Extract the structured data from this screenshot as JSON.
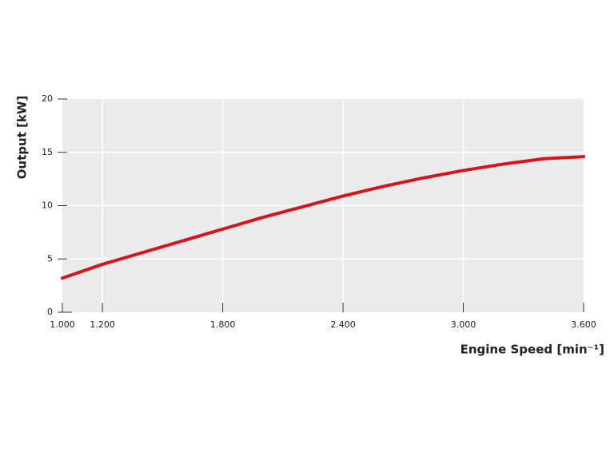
{
  "chart_data": {
    "type": "line",
    "x_label": "Engine Speed [min⁻¹]",
    "y_label": "Output [kW]",
    "x": [
      1000,
      1200,
      1400,
      1600,
      1800,
      2000,
      2200,
      2400,
      2600,
      2800,
      3000,
      3200,
      3400,
      3600
    ],
    "series": [
      {
        "color": "#d7141a",
        "values": [
          3.2,
          4.5,
          5.6,
          6.7,
          7.8,
          8.9,
          9.9,
          10.9,
          11.8,
          12.6,
          13.3,
          13.9,
          14.4,
          14.6
        ]
      }
    ],
    "xlim": [
      1000,
      3600
    ],
    "xticks": [
      {
        "value": 1000,
        "label": "1.000"
      },
      {
        "value": 1200,
        "label": "1.200"
      },
      {
        "value": 1800,
        "label": "1.800"
      },
      {
        "value": 2400,
        "label": "2.400"
      },
      {
        "value": 3000,
        "label": "3.000"
      },
      {
        "value": 3600,
        "label": "3.600"
      }
    ],
    "ylim": [
      0,
      20
    ],
    "yticks": [
      0,
      5,
      10,
      15,
      20
    ],
    "grid": true
  }
}
